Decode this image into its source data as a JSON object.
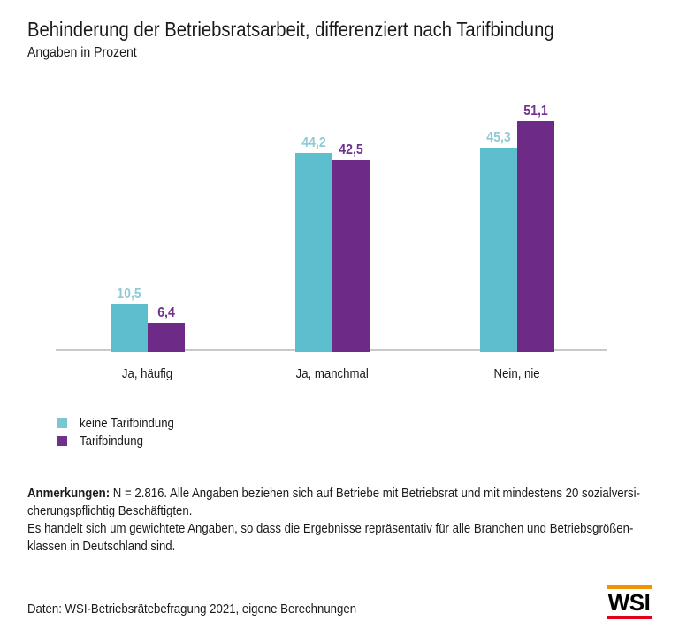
{
  "title": "Behinderung der Betriebsratsarbeit, differenziert nach Tarifbindung",
  "subtitle": "Angaben in Prozent",
  "chart_data": {
    "type": "bar",
    "categories": [
      "Ja, häufig",
      "Ja, manchmal",
      "Nein, nie"
    ],
    "series": [
      {
        "name": "keine Tarifbindung",
        "values": [
          10.5,
          44.2,
          45.3
        ],
        "labels": [
          "10,5",
          "44,2",
          "45,3"
        ],
        "color": "#5dbecd",
        "label_color": "#8ecbd7"
      },
      {
        "name": "Tarifbindung",
        "values": [
          6.4,
          42.5,
          51.1
        ],
        "labels": [
          "6,4",
          "42,5",
          "51,1"
        ],
        "color": "#6d2b87",
        "label_color": "#71308e"
      }
    ],
    "title": "Behinderung der Betriebsratsarbeit, differenziert nach Tarifbindung",
    "subtitle": "Angaben in Prozent",
    "xlabel": "",
    "ylabel": "",
    "ylim": [
      0,
      60
    ],
    "grid": false,
    "value_labels": true,
    "legend_position": "bottom-left",
    "axis_line_color": "#c9c9c9"
  },
  "legend": {
    "items": [
      {
        "label": "keine Tarifbindung",
        "color": "#7cc5d2"
      },
      {
        "label": "Tarifbindung",
        "color": "#70308c"
      }
    ]
  },
  "notes": {
    "label": "Anmerkungen:",
    "line1_rest": " N = 2.816. Alle Angaben beziehen sich auf Betriebe mit Betriebsrat und mit mindestens 20 sozialversi-",
    "line2": "cherungspflichtig Beschäftigten.",
    "line3": "Es handelt sich um gewichtete Angaben, so dass die Ergebnisse repräsentativ für alle Branchen und Betriebsgrößen-",
    "line4": "klassen in Deutschland sind."
  },
  "footer": {
    "source": "Daten: WSI-Betriebsrätebefragung 2021, eigene Berechnungen",
    "logo_text": "WSI",
    "logo_top_color": "#f39200",
    "logo_bottom_color": "#e2001a"
  }
}
